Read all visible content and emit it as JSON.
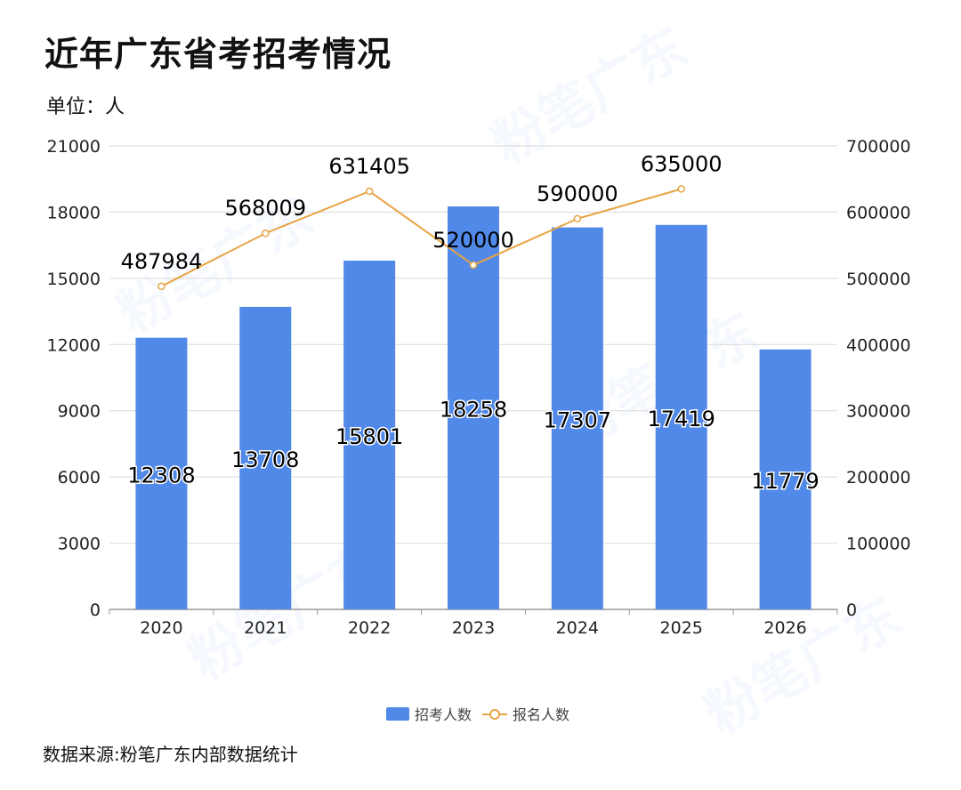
{
  "title": "近年广东省考招考情况",
  "unit_label": "单位：人",
  "source": "数据来源:粉笔广东内部数据统计",
  "watermark": "粉笔广东",
  "colors": {
    "bar": "#5089e8",
    "line": "#e8a444",
    "grid": "#d9d9d9",
    "axis": "#999999",
    "text": "#222222"
  },
  "chart_data": {
    "type": "bar",
    "categories": [
      "2020",
      "2021",
      "2022",
      "2023",
      "2024",
      "2025",
      "2026"
    ],
    "series": [
      {
        "name": "招考人数",
        "type": "bar",
        "axis": "left",
        "values": [
          12308,
          13708,
          15801,
          18258,
          17307,
          17419,
          11779
        ]
      },
      {
        "name": "报名人数",
        "type": "line",
        "axis": "right",
        "values": [
          487984,
          568009,
          631405,
          520000,
          590000,
          635000,
          null
        ]
      }
    ],
    "ylim_left": [
      0,
      21000
    ],
    "yticks_left": [
      0,
      3000,
      6000,
      9000,
      12000,
      15000,
      18000,
      21000
    ],
    "ylim_right": [
      0,
      700000
    ],
    "yticks_right": [
      0,
      100000,
      200000,
      300000,
      400000,
      500000,
      600000,
      700000
    ],
    "grid": true,
    "legend_position": "bottom-center"
  }
}
